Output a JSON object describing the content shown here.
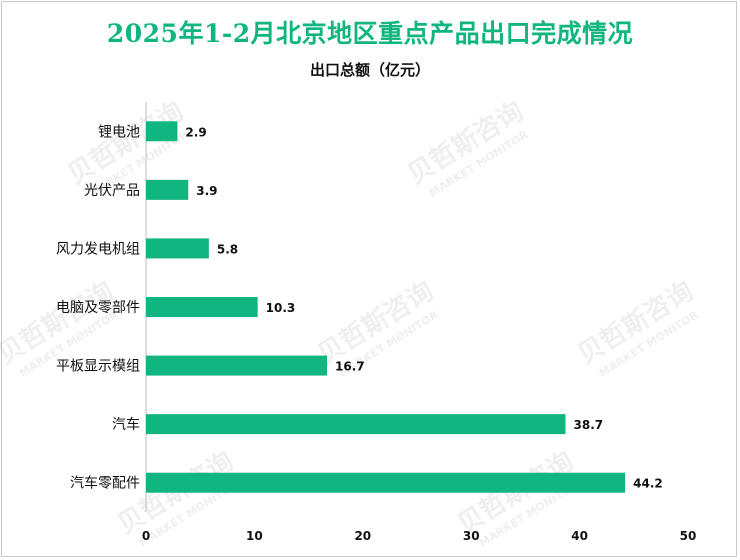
{
  "title": "2025年1-2月北京地区重点产品出口完成情况",
  "subtitle": "出口总额（亿元）",
  "watermark": {
    "cn": "贝哲斯咨询",
    "en": "MARKET MONITOR"
  },
  "colors": {
    "bar": "#10b57f",
    "title": "#10b57f"
  },
  "chart_data": {
    "type": "bar",
    "orientation": "horizontal",
    "title": "2025年1-2月北京地区重点产品出口完成情况",
    "subtitle": "出口总额（亿元）",
    "categories": [
      "锂电池",
      "光伏产品",
      "风力发电机组",
      "电脑及零部件",
      "平板显示模组",
      "汽车",
      "汽车零配件"
    ],
    "values": [
      2.9,
      3.9,
      5.8,
      10.3,
      16.7,
      38.7,
      44.2
    ],
    "value_labels": [
      "2.9",
      "3.9",
      "5.8",
      "10.3",
      "16.7",
      "38.7",
      "44.2"
    ],
    "xlim": [
      0,
      50
    ],
    "xticks": [
      "0",
      "10",
      "20",
      "30",
      "40",
      "50"
    ],
    "grid": false,
    "legend": "none"
  }
}
